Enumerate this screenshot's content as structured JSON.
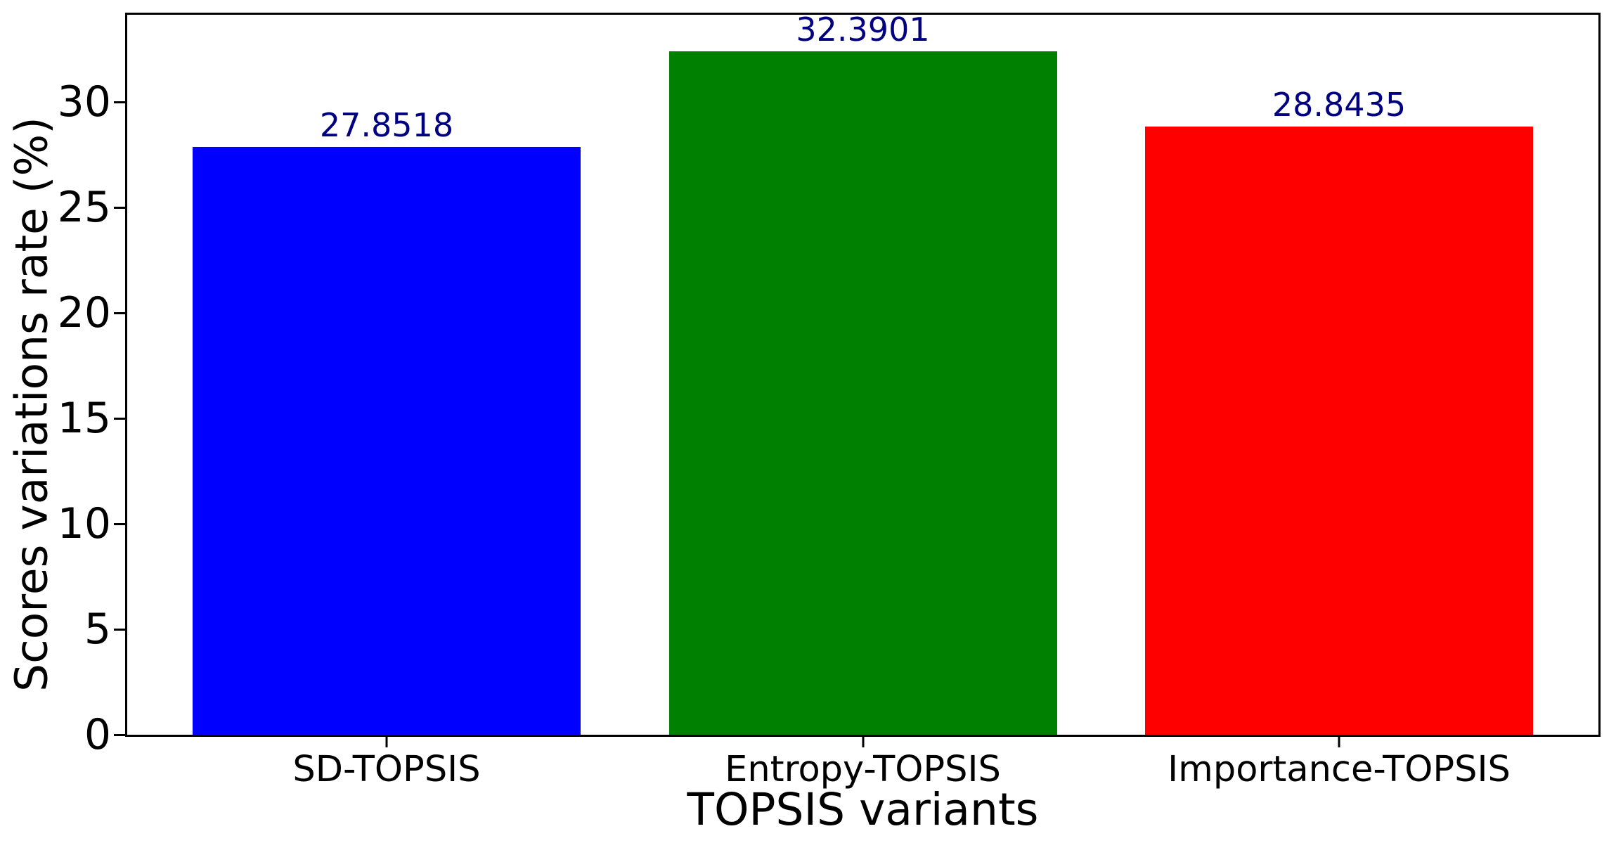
{
  "figure": {
    "background": "#ffffff",
    "axis_color": "#000000"
  },
  "chart_data": {
    "type": "bar",
    "title": "",
    "xlabel": "TOPSIS variants",
    "ylabel": "Scores variations rate (%)",
    "categories": [
      "SD-TOPSIS",
      "Entropy-TOPSIS",
      "Importance-TOPSIS"
    ],
    "values": [
      27.8518,
      32.3901,
      28.8435
    ],
    "value_labels": [
      "27.8518",
      "32.3901",
      "28.8435"
    ],
    "bar_colors": [
      "#0000ff",
      "#008000",
      "#ff0000"
    ],
    "value_label_color": "#000080",
    "yticks": [
      0,
      5,
      10,
      15,
      20,
      25,
      30
    ],
    "ylim": [
      0,
      34.13
    ],
    "grid": false,
    "legend_position": "none",
    "bar_width_fraction": 0.79
  }
}
